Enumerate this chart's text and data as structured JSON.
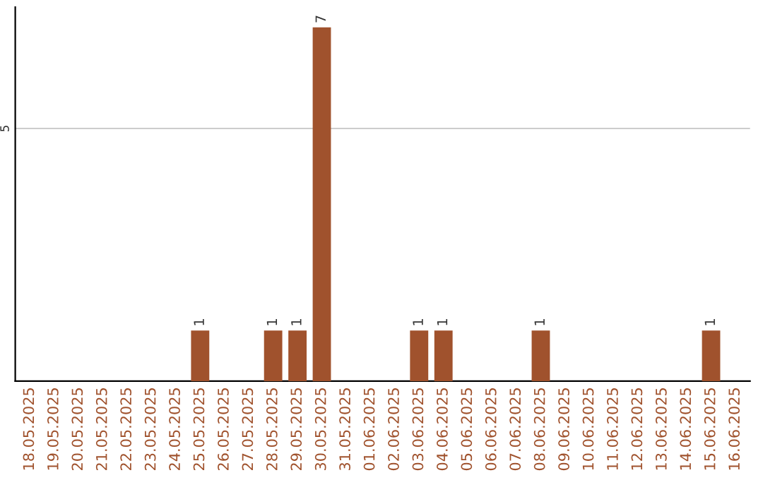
{
  "chart_data": {
    "type": "bar",
    "categories": [
      "18.05.2025",
      "19.05.2025",
      "20.05.2025",
      "21.05.2025",
      "22.05.2025",
      "23.05.2025",
      "24.05.2025",
      "25.05.2025",
      "26.05.2025",
      "27.05.2025",
      "28.05.2025",
      "29.05.2025",
      "30.05.2025",
      "31.05.2025",
      "01.06.2025",
      "02.06.2025",
      "03.06.2025",
      "04.06.2025",
      "05.06.2025",
      "06.06.2025",
      "07.06.2025",
      "08.06.2025",
      "09.06.2025",
      "10.06.2025",
      "11.06.2025",
      "12.06.2025",
      "13.06.2025",
      "14.06.2025",
      "15.06.2025",
      "16.06.2025"
    ],
    "values": [
      0,
      0,
      0,
      0,
      0,
      0,
      0,
      1,
      0,
      0,
      1,
      1,
      7,
      0,
      0,
      0,
      1,
      1,
      0,
      0,
      0,
      1,
      0,
      0,
      0,
      0,
      0,
      0,
      1,
      0
    ],
    "value_labels": [
      null,
      null,
      null,
      null,
      null,
      null,
      null,
      "1",
      null,
      null,
      "1",
      "1",
      "7",
      null,
      null,
      null,
      "1",
      "1",
      null,
      null,
      null,
      "1",
      null,
      null,
      null,
      null,
      null,
      null,
      "1",
      null
    ],
    "color": "#a0522d",
    "ylim": [
      0,
      7.4
    ],
    "yticks": [
      5
    ],
    "grid": "y"
  }
}
